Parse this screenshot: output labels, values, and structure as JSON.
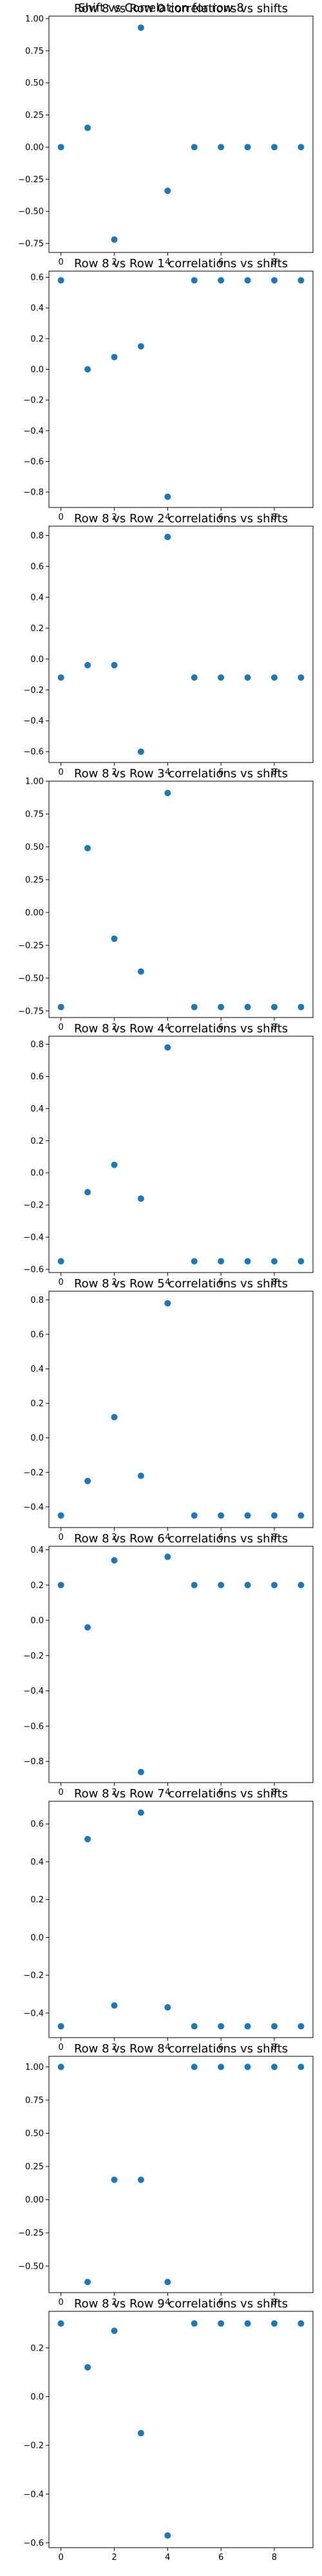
{
  "figure": {
    "suptitle": "Shift vs Correlation for row 8",
    "marker_color": "#1f77b4"
  },
  "chart_data": [
    {
      "type": "scatter",
      "title": "Row 8 vs Row 0 correlations vs shifts",
      "x": [
        0,
        1,
        2,
        3,
        4,
        5,
        6,
        7,
        8,
        9
      ],
      "y": [
        0.0,
        0.15,
        -0.72,
        0.93,
        -0.34,
        0.0,
        0.0,
        0.0,
        0.0,
        0.0
      ],
      "xticks": [
        0,
        2,
        4,
        6,
        8
      ],
      "yticks": [
        -0.75,
        -0.5,
        -0.25,
        0.0,
        0.25,
        0.5,
        0.75,
        1.0
      ],
      "ytick_labels": [
        "−0.75",
        "−0.50",
        "−0.25",
        "0.00",
        "0.25",
        "0.50",
        "0.75",
        "1.00"
      ],
      "xlim": [
        -0.45,
        9.45
      ],
      "ylim": [
        -0.82,
        1.02
      ],
      "grid": false
    },
    {
      "type": "scatter",
      "title": "Row 8 vs Row 1 correlations vs shifts",
      "x": [
        0,
        1,
        2,
        3,
        4,
        5,
        6,
        7,
        8,
        9
      ],
      "y": [
        0.58,
        0.0,
        0.08,
        0.15,
        -0.83,
        0.58,
        0.58,
        0.58,
        0.58,
        0.58
      ],
      "xticks": [
        0,
        2,
        4,
        6,
        8
      ],
      "yticks": [
        -0.8,
        -0.6,
        -0.4,
        -0.2,
        0.0,
        0.2,
        0.4,
        0.6
      ],
      "ytick_labels": [
        "−0.8",
        "−0.6",
        "−0.4",
        "−0.2",
        "0.0",
        "0.2",
        "0.4",
        "0.6"
      ],
      "xlim": [
        -0.45,
        9.45
      ],
      "ylim": [
        -0.9,
        0.64
      ],
      "grid": false
    },
    {
      "type": "scatter",
      "title": "Row 8 vs Row 2 correlations vs shifts",
      "x": [
        0,
        1,
        2,
        3,
        4,
        5,
        6,
        7,
        8,
        9
      ],
      "y": [
        -0.12,
        -0.04,
        -0.04,
        -0.6,
        0.79,
        -0.12,
        -0.12,
        -0.12,
        -0.12,
        -0.12
      ],
      "xticks": [
        0,
        2,
        4,
        6,
        8
      ],
      "yticks": [
        -0.6,
        -0.4,
        -0.2,
        0.0,
        0.2,
        0.4,
        0.6,
        0.8
      ],
      "ytick_labels": [
        "−0.6",
        "−0.4",
        "−0.2",
        "0.0",
        "0.2",
        "0.4",
        "0.6",
        "0.8"
      ],
      "xlim": [
        -0.45,
        9.45
      ],
      "ylim": [
        -0.67,
        0.86
      ],
      "grid": false
    },
    {
      "type": "scatter",
      "title": "Row 8 vs Row 3 correlations vs shifts",
      "x": [
        0,
        1,
        2,
        3,
        4,
        5,
        6,
        7,
        8,
        9
      ],
      "y": [
        -0.72,
        0.49,
        -0.2,
        -0.45,
        0.91,
        -0.72,
        -0.72,
        -0.72,
        -0.72,
        -0.72
      ],
      "xticks": [
        0,
        2,
        4,
        6,
        8
      ],
      "yticks": [
        -0.75,
        -0.5,
        -0.25,
        0.0,
        0.25,
        0.5,
        0.75,
        1.0
      ],
      "ytick_labels": [
        "−0.75",
        "−0.50",
        "−0.25",
        "0.00",
        "0.25",
        "0.50",
        "0.75",
        "1.00"
      ],
      "xlim": [
        -0.45,
        9.45
      ],
      "ylim": [
        -0.8,
        1.0
      ],
      "grid": false
    },
    {
      "type": "scatter",
      "title": "Row 8 vs Row 4 correlations vs shifts",
      "x": [
        0,
        1,
        2,
        3,
        4,
        5,
        6,
        7,
        8,
        9
      ],
      "y": [
        -0.55,
        -0.12,
        0.05,
        -0.16,
        0.78,
        -0.55,
        -0.55,
        -0.55,
        -0.55,
        -0.55
      ],
      "xticks": [
        0,
        2,
        4,
        6,
        8
      ],
      "yticks": [
        -0.6,
        -0.4,
        -0.2,
        0.0,
        0.2,
        0.4,
        0.6,
        0.8
      ],
      "ytick_labels": [
        "−0.6",
        "−0.4",
        "−0.2",
        "0.0",
        "0.2",
        "0.4",
        "0.6",
        "0.8"
      ],
      "xlim": [
        -0.45,
        9.45
      ],
      "ylim": [
        -0.62,
        0.85
      ],
      "grid": false
    },
    {
      "type": "scatter",
      "title": "Row 8 vs Row 5 correlations vs shifts",
      "x": [
        0,
        1,
        2,
        3,
        4,
        5,
        6,
        7,
        8,
        9
      ],
      "y": [
        -0.45,
        -0.25,
        0.12,
        -0.22,
        0.78,
        -0.45,
        -0.45,
        -0.45,
        -0.45,
        -0.45
      ],
      "xticks": [
        0,
        2,
        4,
        6,
        8
      ],
      "yticks": [
        -0.4,
        -0.2,
        0.0,
        0.2,
        0.4,
        0.6,
        0.8
      ],
      "ytick_labels": [
        "−0.4",
        "−0.2",
        "0.0",
        "0.2",
        "0.4",
        "0.6",
        "0.8"
      ],
      "xlim": [
        -0.45,
        9.45
      ],
      "ylim": [
        -0.52,
        0.85
      ],
      "grid": false
    },
    {
      "type": "scatter",
      "title": "Row 8 vs Row 6 correlations vs shifts",
      "x": [
        0,
        1,
        2,
        3,
        4,
        5,
        6,
        7,
        8,
        9
      ],
      "y": [
        0.2,
        -0.04,
        0.34,
        -0.86,
        0.36,
        0.2,
        0.2,
        0.2,
        0.2,
        0.2
      ],
      "xticks": [
        0,
        2,
        4,
        6,
        8
      ],
      "yticks": [
        -0.8,
        -0.6,
        -0.4,
        -0.2,
        0.0,
        0.2,
        0.4
      ],
      "ytick_labels": [
        "−0.8",
        "−0.6",
        "−0.4",
        "−0.2",
        "0.0",
        "0.2",
        "0.4"
      ],
      "xlim": [
        -0.45,
        9.45
      ],
      "ylim": [
        -0.92,
        0.42
      ],
      "grid": false
    },
    {
      "type": "scatter",
      "title": "Row 8 vs Row 7 correlations vs shifts",
      "x": [
        0,
        1,
        2,
        3,
        4,
        5,
        6,
        7,
        8,
        9
      ],
      "y": [
        -0.47,
        0.52,
        -0.36,
        0.66,
        -0.37,
        -0.47,
        -0.47,
        -0.47,
        -0.47,
        -0.47
      ],
      "xticks": [
        0,
        2,
        4,
        6,
        8
      ],
      "yticks": [
        -0.4,
        -0.2,
        0.0,
        0.2,
        0.4,
        0.6
      ],
      "ytick_labels": [
        "−0.4",
        "−0.2",
        "0.0",
        "0.2",
        "0.4",
        "0.6"
      ],
      "xlim": [
        -0.45,
        9.45
      ],
      "ylim": [
        -0.53,
        0.72
      ],
      "grid": false
    },
    {
      "type": "scatter",
      "title": "Row 8 vs Row 8 correlations vs shifts",
      "x": [
        0,
        1,
        2,
        3,
        4,
        5,
        6,
        7,
        8,
        9
      ],
      "y": [
        1.0,
        -0.62,
        0.15,
        0.15,
        -0.62,
        1.0,
        1.0,
        1.0,
        1.0,
        1.0
      ],
      "xticks": [
        0,
        2,
        4,
        6,
        8
      ],
      "yticks": [
        -0.5,
        -0.25,
        0.0,
        0.25,
        0.5,
        0.75,
        1.0
      ],
      "ytick_labels": [
        "−0.50",
        "−0.25",
        "0.00",
        "0.25",
        "0.50",
        "0.75",
        "1.00"
      ],
      "xlim": [
        -0.45,
        9.45
      ],
      "ylim": [
        -0.7,
        1.08
      ],
      "grid": false
    },
    {
      "type": "scatter",
      "title": "Row 8 vs Row 9 correlations vs shifts",
      "x": [
        0,
        1,
        2,
        3,
        4,
        5,
        6,
        7,
        8,
        9
      ],
      "y": [
        0.3,
        0.12,
        0.27,
        -0.15,
        -0.57,
        0.3,
        0.3,
        0.3,
        0.3,
        0.3
      ],
      "xticks": [
        0,
        2,
        4,
        6,
        8
      ],
      "yticks": [
        -0.6,
        -0.4,
        -0.2,
        0.0,
        0.2
      ],
      "ytick_labels": [
        "−0.6",
        "−0.4",
        "−0.2",
        "0.0",
        "0.2"
      ],
      "xlim": [
        -0.45,
        9.45
      ],
      "ylim": [
        -0.62,
        0.35
      ],
      "grid": false
    }
  ]
}
